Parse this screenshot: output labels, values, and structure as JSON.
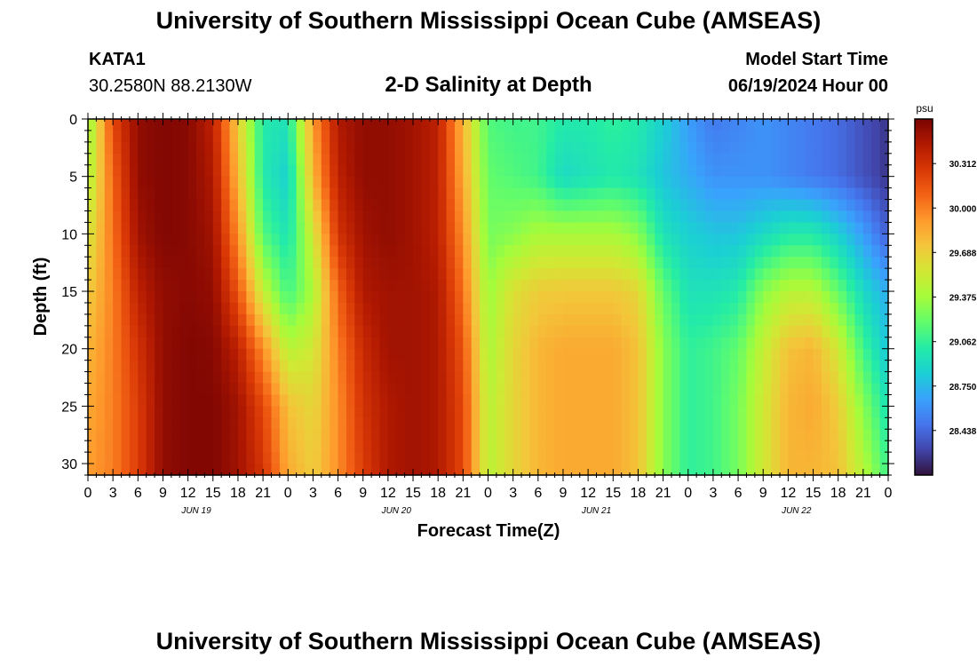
{
  "header": {
    "title": "University of Southern Mississippi Ocean Cube (AMSEAS)",
    "station_id": "KATA1",
    "station_coords": "30.2580N  88.2130W",
    "chart_title": "2-D Salinity at Depth",
    "model_start_label": "Model Start Time",
    "model_start_value": "06/19/2024 Hour 00"
  },
  "footer": {
    "title": "University of Southern Mississippi Ocean Cube (AMSEAS)"
  },
  "chart_data": {
    "type": "heatmap",
    "title": "2-D Salinity at Depth",
    "xlabel": "Forecast Time(Z)",
    "ylabel": "Depth (ft)",
    "x_tick_labels": [
      "0",
      "3",
      "6",
      "9",
      "12",
      "15",
      "18",
      "21",
      "0",
      "3",
      "6",
      "9",
      "12",
      "15",
      "18",
      "21",
      "0",
      "3",
      "6",
      "9",
      "12",
      "15",
      "18",
      "21",
      "0",
      "3",
      "6",
      "9",
      "12",
      "15",
      "18",
      "21",
      "0"
    ],
    "x_range_hours": [
      0,
      96
    ],
    "day_labels": [
      "JUN 19",
      "JUN 20",
      "JUN 21",
      "JUN 22"
    ],
    "y_ticks": [
      0,
      5,
      10,
      15,
      20,
      25,
      30
    ],
    "ylim": [
      0,
      31
    ],
    "colorbar": {
      "unit": "psu",
      "ticks": [
        "30.312",
        "30.000",
        "29.688",
        "29.375",
        "29.062",
        "28.750",
        "28.438"
      ],
      "range": [
        28.125,
        30.625
      ]
    },
    "colormap": [
      "#30123b",
      "#4145ab",
      "#4675ed",
      "#39a2fc",
      "#1bcfd4",
      "#24eca6",
      "#61fc6c",
      "#a4fc3b",
      "#d1e834",
      "#f3c63a",
      "#fe9b2d",
      "#f36315",
      "#d93806",
      "#b11901",
      "#7a0403"
    ],
    "time_hours": [
      0,
      3,
      6,
      9,
      12,
      15,
      18,
      21,
      24,
      27,
      30,
      33,
      36,
      39,
      42,
      45,
      48,
      51,
      54,
      57,
      60,
      63,
      66,
      69,
      72,
      75,
      78,
      81,
      84,
      87,
      90,
      93,
      96
    ],
    "depth_levels_ft": [
      0,
      5,
      10,
      15,
      20,
      25,
      31
    ],
    "salinity_psu": [
      [
        29.3,
        30.2,
        30.55,
        30.6,
        30.58,
        30.4,
        29.7,
        29.0,
        28.95,
        29.9,
        30.45,
        30.55,
        30.55,
        30.5,
        30.4,
        29.8,
        29.15,
        29.1,
        29.1,
        29.0,
        29.0,
        29.05,
        29.0,
        28.85,
        28.65,
        28.5,
        28.55,
        28.6,
        28.55,
        28.5,
        28.45,
        28.35,
        28.25
      ],
      [
        29.4,
        30.1,
        30.55,
        30.6,
        30.58,
        30.45,
        29.8,
        29.0,
        28.85,
        29.8,
        30.4,
        30.55,
        30.55,
        30.5,
        30.4,
        29.85,
        29.2,
        29.15,
        29.1,
        28.9,
        28.95,
        29.0,
        28.95,
        28.8,
        28.7,
        28.6,
        28.6,
        28.6,
        28.55,
        28.5,
        28.45,
        28.35,
        28.25
      ],
      [
        29.55,
        30.05,
        30.5,
        30.6,
        30.58,
        30.5,
        29.95,
        29.15,
        28.95,
        29.55,
        30.3,
        30.5,
        30.55,
        30.5,
        30.4,
        29.95,
        29.25,
        29.3,
        29.4,
        29.4,
        29.4,
        29.4,
        29.3,
        28.95,
        28.85,
        28.8,
        28.8,
        28.9,
        29.0,
        29.0,
        28.85,
        28.65,
        28.4
      ],
      [
        29.7,
        30.0,
        30.4,
        30.55,
        30.58,
        30.55,
        30.15,
        29.5,
        29.1,
        29.4,
        30.1,
        30.45,
        30.5,
        30.5,
        30.45,
        30.05,
        29.35,
        29.6,
        29.7,
        29.72,
        29.72,
        29.72,
        29.65,
        29.2,
        28.95,
        28.95,
        29.0,
        29.3,
        29.45,
        29.45,
        29.2,
        28.9,
        28.7
      ],
      [
        29.8,
        30.0,
        30.3,
        30.55,
        30.6,
        30.58,
        30.4,
        29.95,
        29.45,
        29.55,
        30.0,
        30.35,
        30.5,
        30.5,
        30.45,
        30.15,
        29.4,
        29.65,
        29.8,
        29.85,
        29.85,
        29.85,
        29.75,
        29.3,
        29.05,
        29.1,
        29.2,
        29.5,
        29.75,
        29.8,
        29.55,
        29.1,
        28.8
      ],
      [
        29.85,
        30.0,
        30.25,
        30.55,
        30.6,
        30.6,
        30.5,
        30.2,
        29.75,
        29.65,
        29.95,
        30.3,
        30.45,
        30.5,
        30.45,
        30.2,
        29.45,
        29.65,
        29.8,
        29.85,
        29.85,
        29.85,
        29.75,
        29.3,
        29.05,
        29.1,
        29.25,
        29.55,
        29.8,
        29.85,
        29.7,
        29.3,
        28.95
      ],
      [
        29.9,
        30.0,
        30.25,
        30.55,
        30.6,
        30.6,
        30.5,
        30.3,
        29.85,
        29.7,
        29.95,
        30.25,
        30.45,
        30.5,
        30.45,
        30.2,
        29.45,
        29.65,
        29.8,
        29.85,
        29.85,
        29.85,
        29.75,
        29.3,
        29.05,
        29.1,
        29.25,
        29.55,
        29.8,
        29.8,
        29.75,
        29.45,
        29.1
      ]
    ]
  }
}
